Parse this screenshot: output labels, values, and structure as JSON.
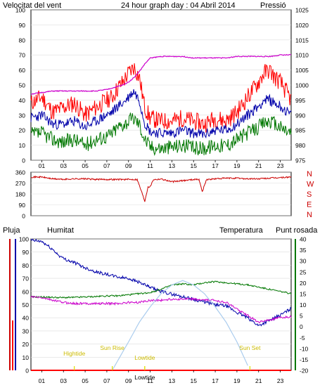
{
  "colors": {
    "wind_gust": "#ff0000",
    "wind_avg": "#0000aa",
    "wind_min": "#007700",
    "pressure": "#cc00cc",
    "direction": "#cc0000",
    "rain": "#ff0000",
    "humidity": "#0000aa",
    "temperature": "#007700",
    "dewpoint": "#cc00cc",
    "sun": "#aaccee",
    "markers": "#dddd00",
    "grid": "#dddddd"
  },
  "chart_data": [
    {
      "type": "line",
      "title": "24 hour graph day : 04 Abril 2014",
      "left_axis_title": "Velocitat del vent",
      "right_axis_title": "Pressió",
      "x_ticks": [
        "01",
        "03",
        "05",
        "07",
        "09",
        "11",
        "13",
        "15",
        "17",
        "19",
        "21",
        "23"
      ],
      "x_range_hours": [
        0,
        24
      ],
      "left_ylim": [
        0,
        100
      ],
      "left_ticks": [
        "100",
        "90",
        "80",
        "70",
        "60",
        "50",
        "40",
        "30",
        "20",
        "10",
        "0"
      ],
      "right_ylim": [
        975,
        1025
      ],
      "right_ticks": [
        "1025",
        "1020",
        "1015",
        "1010",
        "1005",
        "1000",
        "995",
        "990",
        "985",
        "980",
        "975"
      ],
      "grid": true,
      "series": [
        {
          "id": "gust",
          "axis": "left",
          "x": [
            0,
            1,
            2,
            3,
            4,
            5,
            6,
            7,
            7.5,
            8,
            8.5,
            9,
            9.5,
            10,
            10.5,
            11,
            12,
            13,
            14,
            15,
            16,
            17,
            18,
            19,
            20,
            21,
            21.5,
            22,
            22.5,
            23,
            24
          ],
          "y": [
            38,
            42,
            32,
            35,
            38,
            30,
            35,
            40,
            42,
            48,
            52,
            58,
            62,
            55,
            35,
            28,
            26,
            26,
            28,
            26,
            24,
            28,
            26,
            32,
            42,
            52,
            58,
            60,
            55,
            52,
            40
          ]
        },
        {
          "id": "avg",
          "axis": "left",
          "x": [
            0,
            1,
            2,
            3,
            4,
            5,
            6,
            7,
            7.5,
            8,
            8.5,
            9,
            9.5,
            10,
            10.5,
            11,
            12,
            13,
            14,
            15,
            16,
            17,
            18,
            19,
            20,
            21,
            21.5,
            22,
            22.5,
            23,
            24
          ],
          "y": [
            28,
            30,
            24,
            24,
            26,
            22,
            26,
            30,
            32,
            36,
            38,
            42,
            46,
            40,
            25,
            19,
            18,
            18,
            20,
            18,
            17,
            20,
            20,
            24,
            30,
            36,
            40,
            40,
            38,
            36,
            30
          ]
        },
        {
          "id": "min",
          "axis": "left",
          "x": [
            0,
            1,
            2,
            3,
            4,
            5,
            6,
            7,
            7.5,
            8,
            8.5,
            9,
            9.5,
            10,
            10.5,
            11,
            12,
            13,
            14,
            15,
            16,
            17,
            18,
            19,
            20,
            21,
            21.5,
            22,
            22.5,
            23,
            24
          ],
          "y": [
            17,
            18,
            14,
            12,
            14,
            10,
            14,
            16,
            18,
            22,
            24,
            26,
            28,
            24,
            14,
            9,
            8,
            9,
            10,
            8,
            8,
            10,
            10,
            14,
            18,
            22,
            25,
            26,
            24,
            22,
            18
          ]
        },
        {
          "id": "pressure",
          "axis": "right",
          "x": [
            0,
            1,
            2,
            3,
            4,
            5,
            6,
            7,
            7.5,
            8,
            8.5,
            9,
            9.5,
            10,
            10.5,
            11,
            12,
            13,
            14,
            15,
            16,
            17,
            18,
            19,
            20,
            21,
            21.5,
            22,
            22.5,
            23,
            24
          ],
          "y": [
            997,
            997.5,
            998,
            998,
            998,
            998,
            998,
            998.5,
            999,
            999.5,
            1000,
            1001,
            1002.5,
            1004.5,
            1007,
            1009,
            1009.5,
            1009.5,
            1009.5,
            1009,
            1009,
            1009,
            1009,
            1009.5,
            1009.5,
            1009.5,
            1009.5,
            1009.5,
            1009.7,
            1010,
            1010
          ]
        }
      ]
    },
    {
      "type": "line",
      "right_axis_labels": [
        "N",
        "W",
        "S",
        "E",
        "N"
      ],
      "x_range_hours": [
        0,
        24
      ],
      "ylim": [
        0,
        360
      ],
      "y_ticks": [
        "360",
        "270",
        "180",
        "90",
        "0"
      ],
      "grid": true,
      "series": [
        {
          "id": "direction",
          "x": [
            0,
            1,
            2,
            3,
            4,
            5,
            6,
            7,
            8,
            9,
            9.8,
            10.2,
            10.5,
            10.8,
            11,
            11.3,
            11.6,
            12,
            13,
            14,
            15,
            15.5,
            15.8,
            16.2,
            16.5,
            17,
            18,
            19,
            20,
            21,
            22,
            23,
            24
          ],
          "y": [
            320,
            320,
            305,
            300,
            305,
            305,
            300,
            300,
            300,
            300,
            300,
            200,
            120,
            240,
            240,
            300,
            300,
            305,
            280,
            290,
            300,
            300,
            200,
            300,
            300,
            305,
            310,
            310,
            305,
            305,
            310,
            315,
            320
          ]
        }
      ]
    },
    {
      "type": "line",
      "left_labels": [
        "Pluja",
        "Humitat"
      ],
      "right_labels": [
        "Temperatura",
        "Punt rosada"
      ],
      "x_range_hours": [
        0,
        24
      ],
      "left_ylim": [
        0,
        100
      ],
      "left_ticks": [
        "100",
        "90",
        "80",
        "70",
        "60",
        "50",
        "40",
        "30",
        "20",
        "10",
        "0"
      ],
      "right_ylim": [
        -20,
        40
      ],
      "right_ticks": [
        "40",
        "35",
        "30",
        "25",
        "20",
        "15",
        "10",
        "5",
        "0",
        "-5",
        "-10",
        "-15",
        "-20"
      ],
      "grid": true,
      "markers": [
        {
          "label": "Hightide",
          "x": 4
        },
        {
          "label": "Sun Rise",
          "x": 7.5
        },
        {
          "label": "Lowtide",
          "x": 10.5
        },
        {
          "label": "Lowtide",
          "x": 10.5
        },
        {
          "label": "Sun Set",
          "x": 20.2
        }
      ],
      "series": [
        {
          "id": "humidity",
          "axis": "left",
          "x": [
            0,
            1,
            2,
            2.5,
            3,
            4,
            5,
            6,
            7,
            8,
            9,
            10,
            11,
            12,
            13,
            14,
            15,
            16,
            17,
            18,
            19,
            20,
            21,
            22,
            23,
            24
          ],
          "y": [
            99,
            98,
            92,
            88,
            85,
            82,
            78,
            75,
            73,
            71,
            70,
            67,
            63,
            60,
            58,
            56,
            54,
            52,
            50,
            49,
            44,
            40,
            34,
            38,
            42,
            47
          ]
        },
        {
          "id": "temperature",
          "axis": "right",
          "x": [
            0,
            1,
            2,
            3,
            4,
            5,
            6,
            7,
            8,
            9,
            10,
            11,
            12,
            13,
            14,
            15,
            16,
            17,
            18,
            19,
            20,
            21,
            22,
            23,
            24
          ],
          "y": [
            13.5,
            13.5,
            13.3,
            13.2,
            13.3,
            13.5,
            13.7,
            14,
            14,
            14.5,
            15,
            15.5,
            17,
            19,
            19.5,
            19,
            20,
            20.5,
            20,
            19.5,
            19,
            18,
            17,
            16,
            15
          ]
        },
        {
          "id": "dewpoint",
          "axis": "right",
          "x": [
            0,
            1,
            2,
            3,
            4,
            5,
            6,
            7,
            8,
            9,
            10,
            11,
            12,
            13,
            14,
            15,
            16,
            17,
            18,
            19,
            20,
            21,
            22,
            23,
            24
          ],
          "y": [
            13.5,
            13.2,
            12,
            11,
            10.5,
            10.5,
            10.5,
            10.5,
            10.5,
            11,
            11,
            12,
            12,
            12.5,
            12.5,
            12.5,
            12,
            12,
            11,
            8,
            5,
            2,
            3,
            4,
            4.5
          ]
        },
        {
          "id": "sun",
          "axis": "right",
          "x": [
            7.5,
            9,
            10,
            11,
            12,
            13,
            14,
            15,
            16,
            17,
            18,
            19,
            20.2
          ],
          "y": [
            -20,
            -7,
            2,
            9,
            15,
            19,
            21,
            19,
            15,
            9,
            2,
            -7,
            -20
          ]
        },
        {
          "id": "rain",
          "axis": "left",
          "x": [
            0,
            24
          ],
          "y": [
            0,
            0
          ]
        }
      ]
    }
  ]
}
